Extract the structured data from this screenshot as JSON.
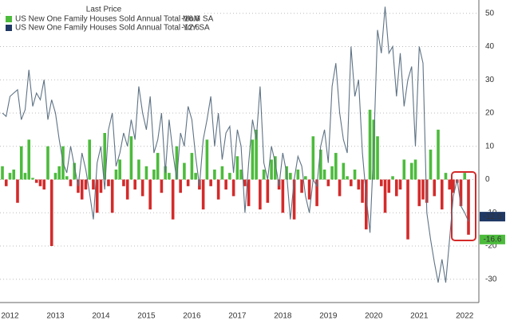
{
  "chart_data": {
    "type": "bar_line",
    "legend_title": "Last Price",
    "categories": [
      null,
      null,
      "2012",
      null,
      null,
      null,
      null,
      null,
      null,
      null,
      null,
      null,
      null,
      null,
      "2013",
      null,
      null,
      null,
      null,
      null,
      null,
      null,
      null,
      null,
      null,
      null,
      "2014",
      null,
      null,
      null,
      null,
      null,
      null,
      null,
      null,
      null,
      null,
      null,
      "2015",
      null,
      null,
      null,
      null,
      null,
      null,
      null,
      null,
      null,
      null,
      null,
      "2016",
      null,
      null,
      null,
      null,
      null,
      null,
      null,
      null,
      null,
      null,
      null,
      "2017",
      null,
      null,
      null,
      null,
      null,
      null,
      null,
      null,
      null,
      null,
      null,
      "2018",
      null,
      null,
      null,
      null,
      null,
      null,
      null,
      null,
      null,
      null,
      null,
      "2019",
      null,
      null,
      null,
      null,
      null,
      null,
      null,
      null,
      null,
      null,
      null,
      "2020",
      null,
      null,
      null,
      null,
      null,
      null,
      null,
      null,
      null,
      null,
      null,
      "2021",
      null,
      null,
      null,
      null,
      null,
      null,
      null,
      null,
      null,
      null,
      null,
      "2022",
      null
    ],
    "series": [
      {
        "name": "US New One Family Houses Sold Annual Total MoM SA",
        "kind": "bar",
        "color": "#4cbb3c",
        "negative_color": "#d42a2a",
        "values": [
          4,
          -2,
          2,
          3,
          -7,
          10,
          2,
          12,
          0.5,
          -1,
          -2,
          -3,
          10,
          -20,
          2,
          4,
          10,
          1,
          -2,
          5,
          -4,
          -6,
          -3,
          12,
          -3,
          -10,
          -4,
          14,
          -2,
          -10,
          3,
          6,
          -2,
          -6,
          13,
          -3,
          6,
          -5,
          4,
          -9,
          3,
          8,
          -4,
          4,
          2,
          -12,
          10,
          -4,
          5,
          -2,
          8,
          2,
          -3,
          -9,
          12,
          -2,
          3,
          -6,
          4,
          -3,
          2,
          -5,
          7,
          3,
          -2,
          -8,
          12,
          15,
          -9,
          3,
          -7,
          6,
          7,
          -3,
          -10,
          4,
          2,
          -12,
          3,
          -4,
          1,
          -6,
          13,
          -8,
          9,
          3,
          -2,
          4,
          8,
          -5,
          5,
          1,
          -2,
          3,
          -3,
          -7,
          -15,
          21,
          18,
          13,
          -2,
          -10,
          -4,
          1,
          -5,
          -3,
          6,
          -18,
          5,
          6,
          -8,
          -6,
          -7,
          9,
          -5,
          15,
          -9,
          2,
          -3,
          -4,
          -1,
          -8,
          2,
          -16.6
        ]
      },
      {
        "name": "US New One Family Houses Sold Annual Total YoY SA",
        "kind": "line",
        "color": "#5f7385",
        "values": [
          20,
          19,
          25,
          26,
          27,
          18,
          21,
          33,
          22,
          26,
          24,
          30,
          18,
          24,
          20,
          12,
          5,
          2,
          10,
          4,
          -2,
          8,
          3,
          -4,
          -12,
          5,
          10,
          -3,
          15,
          20,
          4,
          8,
          14,
          10,
          18,
          12,
          28,
          20,
          15,
          25,
          8,
          12,
          20,
          2,
          18,
          8,
          0,
          14,
          10,
          22,
          18,
          7,
          -2,
          12,
          18,
          25,
          10,
          20,
          6,
          14,
          16,
          2,
          15,
          10,
          -10,
          5,
          18,
          12,
          28,
          5,
          0,
          10,
          5,
          -2,
          8,
          2,
          -12,
          0,
          7,
          4,
          -5,
          -10,
          0,
          -2,
          10,
          15,
          5,
          28,
          35,
          20,
          12,
          8,
          40,
          25,
          30,
          8,
          -5,
          -16,
          10,
          45,
          38,
          52,
          38,
          40,
          25,
          38,
          22,
          30,
          34,
          10,
          40,
          35,
          -10,
          -18,
          -25,
          -31,
          -24,
          -31,
          -18,
          -5,
          0,
          -8,
          -10,
          -12.6
        ]
      }
    ],
    "ylim": [
      -37,
      54
    ],
    "yticks": [
      -30,
      -20,
      -10,
      0,
      10,
      20,
      30,
      40,
      50
    ],
    "grid": true
  }
}
